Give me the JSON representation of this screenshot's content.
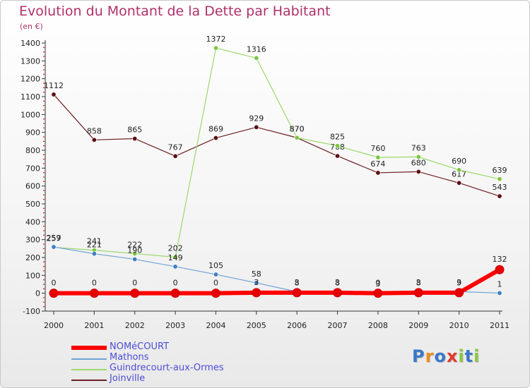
{
  "title": "Evolution du Montant de la Dette par Habitant",
  "subtitle": "(en €)",
  "logo": {
    "text": "Proxiti",
    "letter_colors": [
      "#3a78c8",
      "#f08a1c",
      "#3a78c8",
      "#e23a2a",
      "#8cc63f",
      "#3a78c8",
      "#8cc63f"
    ]
  },
  "chart_data": {
    "type": "line",
    "x": [
      "2000",
      "2001",
      "2002",
      "2003",
      "2004",
      "2005",
      "2006",
      "2007",
      "2008",
      "2009",
      "2010",
      "2011"
    ],
    "ylim": [
      -100,
      1400
    ],
    "yticks": [
      -100,
      0,
      100,
      200,
      300,
      400,
      500,
      600,
      700,
      800,
      900,
      1000,
      1100,
      1200,
      1300,
      1400
    ],
    "grid": false,
    "legend_position": "bottom-left",
    "series": [
      {
        "name": "Joinville",
        "color": "#6e1f24",
        "marker_color": "#5a1015",
        "width": 1.2,
        "marker_r": 3.2,
        "values": [
          1112,
          858,
          865,
          767,
          869,
          929,
          870,
          768,
          674,
          680,
          617,
          543
        ],
        "labels": [
          "1112",
          "858",
          "865",
          "767",
          "869",
          "929",
          "870",
          "768",
          "674",
          "680",
          "617",
          "543"
        ]
      },
      {
        "name": "Guindrecourt-aux-Ormes",
        "color": "#9ad96a",
        "marker_color": "#7cc63f",
        "width": 1.2,
        "marker_r": 3.2,
        "values": [
          257,
          241,
          222,
          202,
          1372,
          1316,
          870,
          825,
          760,
          763,
          690,
          639
        ],
        "labels": [
          "257",
          "241",
          "222",
          "202",
          "1372",
          "1316",
          "870",
          "825",
          "760",
          "763",
          "690",
          "639"
        ]
      },
      {
        "name": "Mathons",
        "color": "#6ea3d6",
        "marker_color": "#3f7fc1",
        "width": 1.2,
        "marker_r": 3.2,
        "values": [
          259,
          221,
          190,
          149,
          105,
          58,
          8,
          8,
          3,
          8,
          9,
          1
        ],
        "labels": [
          "259",
          "221",
          "190",
          "149",
          "105",
          "58",
          "8",
          "8",
          "3",
          "8",
          "9",
          "1"
        ]
      },
      {
        "name": "NOMéCOURT",
        "color": "#ff0000",
        "marker_color": "#e60000",
        "width": 6,
        "marker_r": 6,
        "values": [
          0,
          0,
          0,
          0,
          0,
          3,
          3,
          3,
          0,
          3,
          3,
          132
        ],
        "labels": [
          "0",
          "0",
          "0",
          "0",
          "0",
          "3",
          "3",
          "3",
          "0",
          "3",
          "3",
          "132"
        ]
      }
    ]
  },
  "legend": [
    {
      "name": "NOMéCOURT",
      "color": "#ff0000",
      "thickness": 6
    },
    {
      "name": "Mathons",
      "color": "#6ea3d6",
      "thickness": 2
    },
    {
      "name": "Guindrecourt-aux-Ormes",
      "color": "#9ad96a",
      "thickness": 2
    },
    {
      "name": "Joinville",
      "color": "#6e1f24",
      "thickness": 2
    }
  ]
}
